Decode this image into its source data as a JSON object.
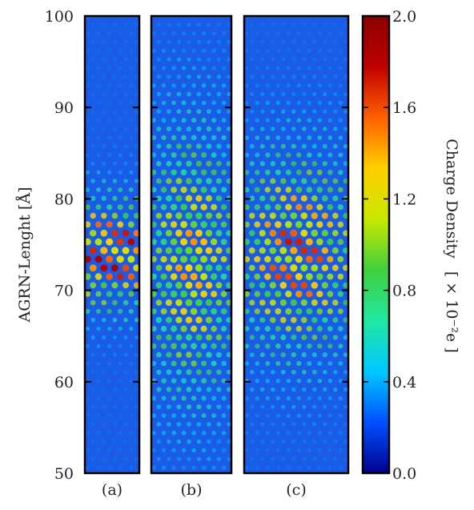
{
  "chart_data": {
    "type": "heatmap",
    "ylabel": "AGRN-Lenght [Å]",
    "ylim": [
      50,
      100
    ],
    "yticks": [
      50,
      60,
      70,
      80,
      90,
      100
    ],
    "ytick_labels": [
      "50",
      "60",
      "70",
      "80",
      "90",
      "100"
    ],
    "panels": [
      {
        "label": "(a)",
        "peak_center_y": 74,
        "peak_spread_y": 6,
        "peak_density": 2.0
      },
      {
        "label": "(b)",
        "peak_center_y": 73,
        "peak_spread_y": 15,
        "peak_density": 1.5
      },
      {
        "label": "(c)",
        "peak_center_y": 74,
        "peak_spread_y": 11,
        "peak_density": 1.8
      }
    ],
    "colorbar": {
      "label": "Charge Density",
      "unit": "[ × 10⁻²e ]",
      "range": [
        0.0,
        2.0
      ],
      "ticks": [
        0.0,
        0.4,
        0.8,
        1.2,
        1.6,
        2.0
      ],
      "tick_labels": [
        "0.0",
        "0.4",
        "0.8",
        "1.2",
        "1.6",
        "2.0"
      ],
      "colors": [
        "#00008f",
        "#0050ff",
        "#00c8ff",
        "#20e8a0",
        "#40d040",
        "#c8e800",
        "#ffd000",
        "#ff6000",
        "#c00000",
        "#8a0000"
      ]
    },
    "background_color": "#1a5ce6"
  }
}
